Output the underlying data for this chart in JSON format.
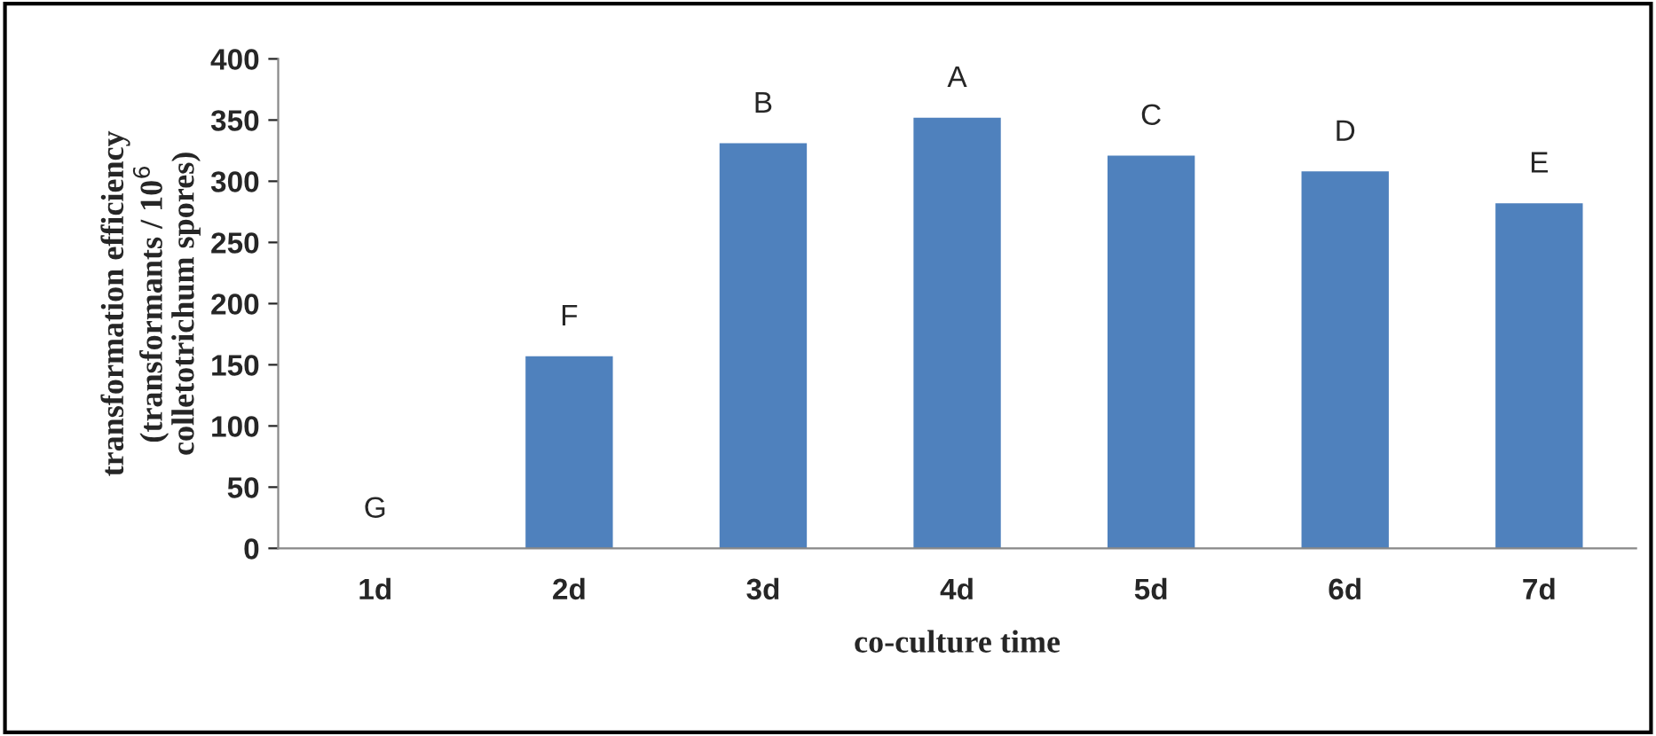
{
  "chart_data": {
    "type": "bar",
    "xlabel": "co-culture time",
    "ylabel": "transformation efficiency\n(transformants / 10$^{6}$\ncolletotrichum spores)",
    "categories": [
      "1d",
      "2d",
      "3d",
      "4d",
      "5d",
      "6d",
      "7d"
    ],
    "values": [
      0,
      157,
      331,
      352,
      321,
      308,
      282
    ],
    "color": "#4f81bd",
    "ylim": [
      0,
      400
    ],
    "yticks": [
      0,
      50,
      100,
      150,
      200,
      250,
      300,
      350,
      400
    ],
    "grid": false,
    "annotations": [
      {
        "text": "G",
        "x": "1d",
        "y": 0
      },
      {
        "text": "F",
        "x": "2d",
        "y": 157
      },
      {
        "text": "B",
        "x": "3d",
        "y": 331
      },
      {
        "text": "A",
        "x": "4d",
        "y": 352
      },
      {
        "text": "C",
        "x": "5d",
        "y": 321
      },
      {
        "text": "D",
        "x": "6d",
        "y": 308
      },
      {
        "text": "E",
        "x": "7d",
        "y": 282
      }
    ]
  }
}
